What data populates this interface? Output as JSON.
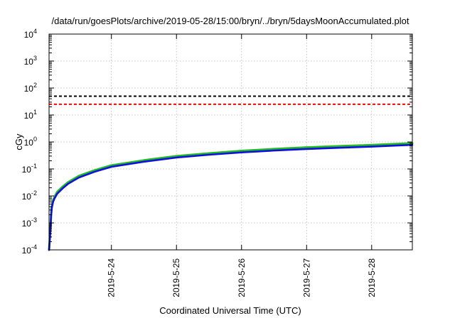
{
  "chart_data": {
    "type": "line",
    "title": "/data/run/goesPlots/archive/2019-05-28/15:00/bryn/../bryn/5daysMoonAccumulated.plot",
    "xlabel": "Coordinated Universal Time (UTC)",
    "ylabel": "cGy",
    "y_scale": "log",
    "xlim": [
      "2019-05-23T01:00",
      "2019-05-28T15:00"
    ],
    "ylim": [
      0.0001,
      10000
    ],
    "grid": true,
    "x_ticks": [
      "2019-5-24",
      "2019-5-25",
      "2019-5-26",
      "2019-5-27",
      "2019-5-28"
    ],
    "y_ticks": [
      {
        "value": 0.0001,
        "base": "10",
        "exp": "-4"
      },
      {
        "value": 0.001,
        "base": "10",
        "exp": "-3"
      },
      {
        "value": 0.01,
        "base": "10",
        "exp": "-2"
      },
      {
        "value": 0.1,
        "base": "10",
        "exp": "-1"
      },
      {
        "value": 1,
        "base": "10",
        "exp": "0"
      },
      {
        "value": 10,
        "base": "10",
        "exp": "1"
      },
      {
        "value": 100,
        "base": "10",
        "exp": "2"
      },
      {
        "value": 1000,
        "base": "10",
        "exp": "3"
      },
      {
        "value": 10000,
        "base": "10",
        "exp": "4"
      }
    ],
    "reference_lines": [
      {
        "value": 50,
        "color": "#000000",
        "style": "dashed"
      },
      {
        "value": 25,
        "color": "#ff0000",
        "style": "dashed"
      }
    ],
    "series": [
      {
        "color": "#22bb22",
        "x": [
          "2019-05-23T01:00",
          "2019-05-23T01:30",
          "2019-05-23T01:45",
          "2019-05-23T02:00",
          "2019-05-23T02:30",
          "2019-05-23T03:00",
          "2019-05-23T04:00",
          "2019-05-23T06:00",
          "2019-05-23T08:00",
          "2019-05-23T12:00",
          "2019-05-23T18:00",
          "2019-05-24T00:00",
          "2019-05-24T12:00",
          "2019-05-25T00:00",
          "2019-05-25T12:00",
          "2019-05-26T00:00",
          "2019-05-26T12:00",
          "2019-05-27T00:00",
          "2019-05-27T12:00",
          "2019-05-28T00:00",
          "2019-05-28T15:00"
        ],
        "y": [
          0.0001,
          0.0006,
          0.002,
          0.004,
          0.007,
          0.009,
          0.014,
          0.022,
          0.032,
          0.055,
          0.09,
          0.135,
          0.21,
          0.3,
          0.38,
          0.47,
          0.55,
          0.63,
          0.7,
          0.77,
          0.9
        ]
      },
      {
        "color": "#1111dd",
        "x": [
          "2019-05-23T01:00",
          "2019-05-23T01:30",
          "2019-05-23T01:45",
          "2019-05-23T02:00",
          "2019-05-23T02:30",
          "2019-05-23T03:00",
          "2019-05-23T04:00",
          "2019-05-23T06:00",
          "2019-05-23T08:00",
          "2019-05-23T12:00",
          "2019-05-23T18:00",
          "2019-05-24T00:00",
          "2019-05-24T12:00",
          "2019-05-25T00:00",
          "2019-05-25T12:00",
          "2019-05-26T00:00",
          "2019-05-26T12:00",
          "2019-05-27T00:00",
          "2019-05-27T12:00",
          "2019-05-28T00:00",
          "2019-05-28T15:00"
        ],
        "y": [
          0.0001,
          0.0005,
          0.0018,
          0.0035,
          0.006,
          0.008,
          0.012,
          0.019,
          0.028,
          0.048,
          0.08,
          0.12,
          0.185,
          0.265,
          0.335,
          0.41,
          0.48,
          0.55,
          0.61,
          0.67,
          0.78
        ]
      }
    ]
  }
}
